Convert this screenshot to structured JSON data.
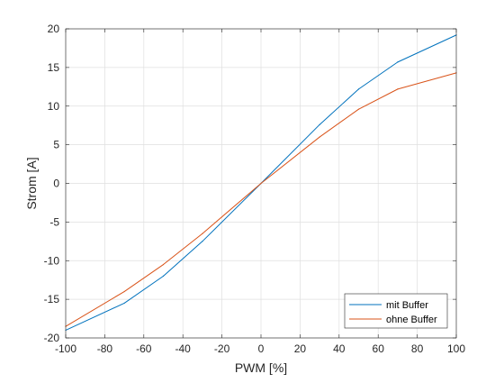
{
  "chart_data": {
    "type": "line",
    "title": "",
    "xlabel": "PWM [%]",
    "ylabel": "Strom [A]",
    "xlim": [
      -100,
      100
    ],
    "ylim": [
      -20,
      20
    ],
    "xticks": [
      -100,
      -80,
      -60,
      -40,
      -20,
      0,
      20,
      40,
      60,
      80,
      100
    ],
    "yticks": [
      -20,
      -15,
      -10,
      -5,
      0,
      5,
      10,
      15,
      20
    ],
    "grid": true,
    "legend_position": "bottom-right",
    "series": [
      {
        "name": "mit Buffer",
        "color": "#0072bd",
        "x": [
          -100,
          -70,
          -50,
          -30,
          0,
          30,
          50,
          70,
          100
        ],
        "y": [
          -19.0,
          -15.5,
          -12.0,
          -7.5,
          0.0,
          7.6,
          12.2,
          15.7,
          19.2
        ]
      },
      {
        "name": "ohne Buffer",
        "color": "#d95319",
        "x": [
          -100,
          -70,
          -50,
          -30,
          0,
          30,
          50,
          70,
          100
        ],
        "y": [
          -18.5,
          -14.0,
          -10.5,
          -6.5,
          0.0,
          6.0,
          9.6,
          12.2,
          14.3
        ]
      }
    ]
  }
}
